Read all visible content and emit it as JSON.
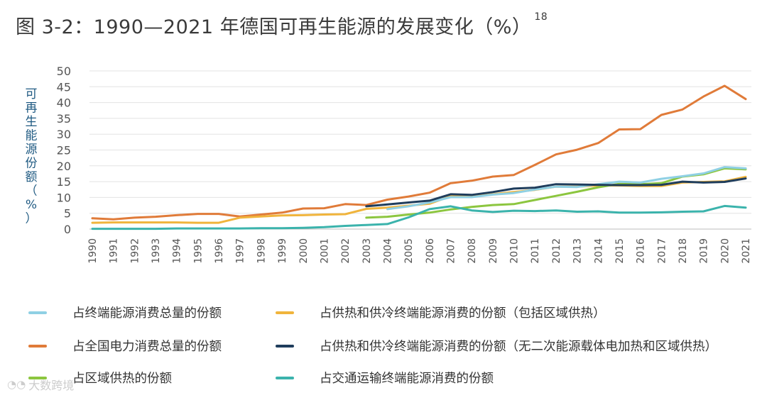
{
  "title": "图 3-2：1990—2021 年德国可再生能源的发展变化（%）",
  "footnote_ref": "18",
  "watermark": "大数跨境",
  "chart_data": {
    "type": "line",
    "title": "1990—2021 年德国可再生能源的发展变化（%）",
    "xlabel": "",
    "ylabel": "可再生能源份额（%）",
    "ylabel_chars": [
      "可",
      "再",
      "生",
      "能",
      "源",
      "份",
      "额",
      "（",
      "%",
      "）"
    ],
    "ylim": [
      0,
      50
    ],
    "yticks": [
      0,
      5,
      10,
      15,
      20,
      25,
      30,
      35,
      40,
      45,
      50
    ],
    "categories": [
      "1990",
      "1991",
      "1992",
      "1993",
      "1994",
      "1995",
      "1996",
      "1997",
      "1998",
      "1999",
      "2000",
      "2001",
      "2002",
      "2003",
      "2004",
      "2005",
      "2006",
      "2007",
      "2008",
      "2009",
      "2010",
      "2011",
      "2012",
      "2013",
      "2014",
      "2015",
      "2016",
      "2017",
      "2018",
      "2019",
      "2020",
      "2021"
    ],
    "series": [
      {
        "name": "占全国电力消费总量的份额",
        "color": "#e07b39",
        "values": [
          3.4,
          3.1,
          3.6,
          3.9,
          4.4,
          4.8,
          4.8,
          4.0,
          4.6,
          5.2,
          6.5,
          6.6,
          7.9,
          7.6,
          9.3,
          10.3,
          11.5,
          14.5,
          15.3,
          16.6,
          17.1,
          20.3,
          23.6,
          25.1,
          27.2,
          31.5,
          31.6,
          36.1,
          37.8,
          41.9,
          45.3,
          41.1
        ]
      },
      {
        "name": "占供热和供冷终端能源消费的份额（包括区域供热）",
        "color": "#f0b43c",
        "values": [
          2.0,
          2.1,
          2.1,
          2.1,
          2.1,
          2.0,
          2.0,
          3.6,
          4.0,
          4.3,
          4.4,
          4.6,
          4.7,
          6.4,
          6.8,
          7.4,
          8.0,
          10.4,
          10.2,
          11.0,
          11.7,
          12.4,
          13.4,
          13.4,
          13.8,
          13.8,
          13.6,
          13.6,
          14.7,
          14.9,
          15.1,
          16.5
        ]
      },
      {
        "name": "占区域供热的份额",
        "color": "#8cc63f",
        "values": [
          null,
          null,
          null,
          null,
          null,
          null,
          null,
          null,
          null,
          null,
          null,
          null,
          null,
          3.6,
          3.9,
          4.6,
          5.2,
          6.2,
          7.0,
          7.6,
          7.9,
          9.2,
          10.5,
          11.8,
          13.2,
          14.3,
          14.2,
          14.5,
          16.6,
          17.3,
          19.2,
          18.9
        ]
      },
      {
        "name": "占终端能源消费总量的份额",
        "color": "#8fd0e4",
        "values": [
          null,
          null,
          null,
          null,
          null,
          null,
          null,
          null,
          null,
          null,
          null,
          null,
          null,
          null,
          6.3,
          7.2,
          8.4,
          10.1,
          10.1,
          10.9,
          11.4,
          12.5,
          13.4,
          13.3,
          14.2,
          15.0,
          14.7,
          15.9,
          16.7,
          17.6,
          19.6,
          19.2
        ]
      },
      {
        "name": "占供热和供冷终端能源消费的份额（无二次能源载体电加热和区域供热）",
        "color": "#1f3d5c",
        "values": [
          null,
          null,
          null,
          null,
          null,
          null,
          null,
          null,
          null,
          null,
          null,
          null,
          null,
          7.2,
          7.8,
          8.4,
          9.0,
          11.0,
          10.8,
          11.7,
          12.8,
          13.1,
          14.2,
          14.1,
          14.0,
          13.9,
          13.9,
          14.0,
          15.0,
          14.7,
          14.9,
          16.0
        ]
      },
      {
        "name": "占交通运输终端能源消费的份额",
        "color": "#3bb3ac",
        "values": [
          0.1,
          0.1,
          0.1,
          0.1,
          0.2,
          0.2,
          0.2,
          0.2,
          0.3,
          0.3,
          0.4,
          0.6,
          1.0,
          1.3,
          1.6,
          3.7,
          6.3,
          7.2,
          5.9,
          5.4,
          5.8,
          5.7,
          5.9,
          5.5,
          5.6,
          5.2,
          5.2,
          5.3,
          5.5,
          5.6,
          7.3,
          6.8
        ]
      }
    ],
    "legend": [
      {
        "label": "占终端能源消费总量的份额",
        "color": "#8fd0e4"
      },
      {
        "label": "占供热和供冷终端能源消费的份额（包括区域供热）",
        "color": "#f0b43c"
      },
      {
        "label": "占全国电力消费总量的份额",
        "color": "#e07b39"
      },
      {
        "label": "占供热和供冷终端能源消费的份额（无二次能源载体电加热和区域供热）",
        "color": "#1f3d5c"
      },
      {
        "label": "占区域供热的份额",
        "color": "#8cc63f"
      },
      {
        "label": "占交通运输终端能源消费的份额",
        "color": "#3bb3ac"
      }
    ],
    "grid": true,
    "legend_position": "bottom"
  }
}
